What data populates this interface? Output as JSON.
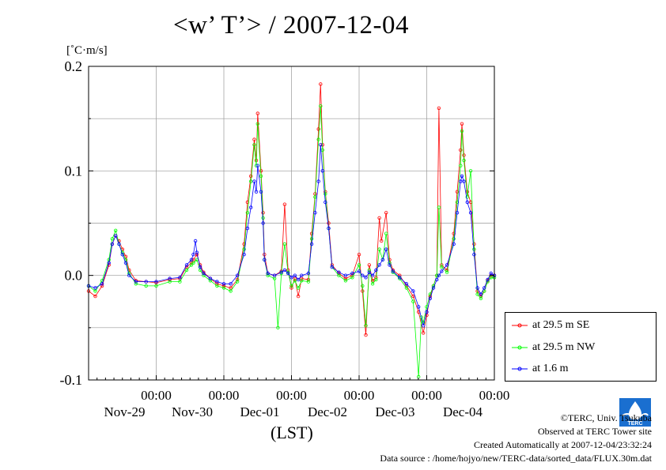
{
  "title": "<w’ T’> / 2007-12-04",
  "unit_label": "[˚C·m/s]",
  "xlabel": "(LST)",
  "footer": {
    "copyright": "©TERC, Univ. Tsukuba",
    "observed": "Observed at TERC Tower site",
    "created": "Created Automatically at 2007-12-04/23:32:24",
    "source": "Data source : /home/hojyo/new/TERC-data/sorted_data/FLUX.30m.dat"
  },
  "logo_text": "TERC",
  "colors": {
    "se": "#ff0000",
    "nw": "#00ff00",
    "low": "#0000ff",
    "grid": "#999999"
  },
  "chart_data": {
    "type": "line",
    "title": "<w’ T’> / 2007-12-04",
    "ylabel": "[˚C·m/s]",
    "xlabel": "(LST)",
    "ylim": [
      -0.1,
      0.2
    ],
    "xlim": [
      0,
      6
    ],
    "x_unit": "days since 2007-11-28 00:00",
    "yticks": [
      {
        "v": 0.2,
        "label": "0.2"
      },
      {
        "v": 0.1,
        "label": "0.1"
      },
      {
        "v": 0.0,
        "label": "0.0"
      },
      {
        "v": -0.1,
        "label": "-0.1"
      }
    ],
    "xticks": [
      {
        "v": 1,
        "time": "00:00",
        "date": "Nov-29"
      },
      {
        "v": 2,
        "time": "00:00",
        "date": "Nov-30"
      },
      {
        "v": 3,
        "time": "00:00",
        "date": "Dec-01"
      },
      {
        "v": 4,
        "time": "00:00",
        "date": "Dec-02"
      },
      {
        "v": 5,
        "time": "00:00",
        "date": "Dec-03"
      },
      {
        "v": 6,
        "time": "00:00",
        "date": "Dec-04"
      }
    ],
    "grid": true,
    "legend_position": "bottom-right outside",
    "series": [
      {
        "name": "at 29.5 m SE",
        "color": "#ff0000",
        "points": [
          [
            0.0,
            -0.015
          ],
          [
            0.1,
            -0.02
          ],
          [
            0.2,
            -0.01
          ],
          [
            0.3,
            0.01
          ],
          [
            0.35,
            0.03
          ],
          [
            0.4,
            0.038
          ],
          [
            0.45,
            0.033
          ],
          [
            0.5,
            0.025
          ],
          [
            0.55,
            0.018
          ],
          [
            0.6,
            0.005
          ],
          [
            0.7,
            -0.005
          ],
          [
            0.85,
            -0.006
          ],
          [
            1.0,
            -0.007
          ],
          [
            1.2,
            -0.004
          ],
          [
            1.35,
            -0.003
          ],
          [
            1.45,
            0.008
          ],
          [
            1.52,
            0.012
          ],
          [
            1.55,
            0.015
          ],
          [
            1.6,
            0.02
          ],
          [
            1.65,
            0.01
          ],
          [
            1.7,
            0.003
          ],
          [
            1.8,
            -0.003
          ],
          [
            1.9,
            -0.008
          ],
          [
            2.0,
            -0.01
          ],
          [
            2.1,
            -0.012
          ],
          [
            2.2,
            -0.004
          ],
          [
            2.3,
            0.03
          ],
          [
            2.35,
            0.07
          ],
          [
            2.4,
            0.095
          ],
          [
            2.45,
            0.13
          ],
          [
            2.48,
            0.11
          ],
          [
            2.5,
            0.155
          ],
          [
            2.55,
            0.1
          ],
          [
            2.58,
            0.06
          ],
          [
            2.6,
            0.02
          ],
          [
            2.65,
            0.002
          ],
          [
            2.75,
            0.0
          ],
          [
            2.85,
            0.004
          ],
          [
            2.9,
            0.068
          ],
          [
            2.95,
            0.005
          ],
          [
            3.0,
            -0.012
          ],
          [
            3.05,
            -0.003
          ],
          [
            3.1,
            -0.02
          ],
          [
            3.15,
            -0.003
          ],
          [
            3.25,
            -0.004
          ],
          [
            3.3,
            0.04
          ],
          [
            3.35,
            0.078
          ],
          [
            3.4,
            0.14
          ],
          [
            3.43,
            0.183
          ],
          [
            3.46,
            0.125
          ],
          [
            3.5,
            0.08
          ],
          [
            3.55,
            0.05
          ],
          [
            3.6,
            0.01
          ],
          [
            3.7,
            0.002
          ],
          [
            3.8,
            -0.003
          ],
          [
            3.9,
            0.0
          ],
          [
            4.0,
            0.02
          ],
          [
            4.05,
            -0.015
          ],
          [
            4.1,
            -0.057
          ],
          [
            4.15,
            0.01
          ],
          [
            4.2,
            -0.005
          ],
          [
            4.25,
            -0.002
          ],
          [
            4.3,
            0.055
          ],
          [
            4.33,
            0.033
          ],
          [
            4.4,
            0.06
          ],
          [
            4.45,
            0.015
          ],
          [
            4.5,
            0.005
          ],
          [
            4.6,
            0.0
          ],
          [
            4.7,
            -0.01
          ],
          [
            4.8,
            -0.02
          ],
          [
            4.88,
            -0.035
          ],
          [
            4.95,
            -0.055
          ],
          [
            5.0,
            -0.038
          ],
          [
            5.05,
            -0.02
          ],
          [
            5.1,
            -0.01
          ],
          [
            5.15,
            0.0
          ],
          [
            5.18,
            0.16
          ],
          [
            5.22,
            0.01
          ],
          [
            5.3,
            0.005
          ],
          [
            5.4,
            0.04
          ],
          [
            5.45,
            0.08
          ],
          [
            5.5,
            0.12
          ],
          [
            5.52,
            0.145
          ],
          [
            5.55,
            0.115
          ],
          [
            5.6,
            0.08
          ],
          [
            5.65,
            0.07
          ],
          [
            5.7,
            0.03
          ],
          [
            5.75,
            -0.015
          ],
          [
            5.8,
            -0.02
          ],
          [
            5.85,
            -0.015
          ],
          [
            5.9,
            -0.005
          ],
          [
            5.95,
            0.0
          ],
          [
            6.0,
            0.0
          ]
        ]
      },
      {
        "name": "at 29.5 m NW",
        "color": "#00ff00",
        "points": [
          [
            0.0,
            -0.01
          ],
          [
            0.1,
            -0.015
          ],
          [
            0.2,
            -0.005
          ],
          [
            0.3,
            0.015
          ],
          [
            0.35,
            0.035
          ],
          [
            0.4,
            0.043
          ],
          [
            0.45,
            0.03
          ],
          [
            0.5,
            0.022
          ],
          [
            0.55,
            0.015
          ],
          [
            0.6,
            0.002
          ],
          [
            0.7,
            -0.008
          ],
          [
            0.85,
            -0.01
          ],
          [
            1.0,
            -0.01
          ],
          [
            1.2,
            -0.006
          ],
          [
            1.35,
            -0.006
          ],
          [
            1.45,
            0.005
          ],
          [
            1.52,
            0.01
          ],
          [
            1.55,
            0.012
          ],
          [
            1.6,
            0.015
          ],
          [
            1.65,
            0.005
          ],
          [
            1.7,
            0.0
          ],
          [
            1.8,
            -0.005
          ],
          [
            1.9,
            -0.01
          ],
          [
            2.0,
            -0.012
          ],
          [
            2.1,
            -0.015
          ],
          [
            2.2,
            -0.006
          ],
          [
            2.3,
            0.025
          ],
          [
            2.35,
            0.06
          ],
          [
            2.4,
            0.09
          ],
          [
            2.45,
            0.125
          ],
          [
            2.48,
            0.105
          ],
          [
            2.5,
            0.145
          ],
          [
            2.55,
            0.095
          ],
          [
            2.58,
            0.055
          ],
          [
            2.6,
            0.015
          ],
          [
            2.65,
            0.0
          ],
          [
            2.75,
            -0.003
          ],
          [
            2.8,
            -0.05
          ],
          [
            2.85,
            0.002
          ],
          [
            2.9,
            0.03
          ],
          [
            2.95,
            0.003
          ],
          [
            3.0,
            -0.01
          ],
          [
            3.05,
            -0.005
          ],
          [
            3.1,
            -0.012
          ],
          [
            3.15,
            -0.005
          ],
          [
            3.25,
            -0.006
          ],
          [
            3.3,
            0.035
          ],
          [
            3.35,
            0.075
          ],
          [
            3.4,
            0.13
          ],
          [
            3.43,
            0.162
          ],
          [
            3.46,
            0.12
          ],
          [
            3.5,
            0.078
          ],
          [
            3.55,
            0.045
          ],
          [
            3.6,
            0.008
          ],
          [
            3.7,
            0.0
          ],
          [
            3.8,
            -0.005
          ],
          [
            3.9,
            -0.002
          ],
          [
            4.0,
            0.01
          ],
          [
            4.05,
            -0.01
          ],
          [
            4.1,
            -0.048
          ],
          [
            4.15,
            0.005
          ],
          [
            4.2,
            -0.008
          ],
          [
            4.25,
            -0.004
          ],
          [
            4.3,
            0.025
          ],
          [
            4.35,
            0.015
          ],
          [
            4.4,
            0.04
          ],
          [
            4.45,
            0.012
          ],
          [
            4.5,
            0.003
          ],
          [
            4.6,
            -0.003
          ],
          [
            4.7,
            -0.012
          ],
          [
            4.8,
            -0.025
          ],
          [
            4.88,
            -0.097
          ],
          [
            4.92,
            -0.04
          ],
          [
            4.95,
            -0.045
          ],
          [
            5.0,
            -0.03
          ],
          [
            5.05,
            -0.018
          ],
          [
            5.1,
            -0.01
          ],
          [
            5.15,
            0.0
          ],
          [
            5.18,
            0.065
          ],
          [
            5.22,
            0.008
          ],
          [
            5.3,
            0.003
          ],
          [
            5.4,
            0.035
          ],
          [
            5.45,
            0.07
          ],
          [
            5.5,
            0.105
          ],
          [
            5.52,
            0.138
          ],
          [
            5.55,
            0.11
          ],
          [
            5.6,
            0.075
          ],
          [
            5.65,
            0.1
          ],
          [
            5.7,
            0.025
          ],
          [
            5.75,
            -0.018
          ],
          [
            5.8,
            -0.022
          ],
          [
            5.85,
            -0.015
          ],
          [
            5.9,
            -0.006
          ],
          [
            5.95,
            -0.002
          ],
          [
            6.0,
            -0.002
          ]
        ]
      },
      {
        "name": "at 1.6 m",
        "color": "#0000ff",
        "points": [
          [
            0.0,
            -0.01
          ],
          [
            0.1,
            -0.012
          ],
          [
            0.2,
            -0.008
          ],
          [
            0.3,
            0.012
          ],
          [
            0.35,
            0.03
          ],
          [
            0.4,
            0.038
          ],
          [
            0.45,
            0.03
          ],
          [
            0.5,
            0.02
          ],
          [
            0.55,
            0.012
          ],
          [
            0.6,
            0.0
          ],
          [
            0.7,
            -0.006
          ],
          [
            0.85,
            -0.006
          ],
          [
            1.0,
            -0.006
          ],
          [
            1.2,
            -0.003
          ],
          [
            1.35,
            -0.002
          ],
          [
            1.45,
            0.01
          ],
          [
            1.52,
            0.015
          ],
          [
            1.55,
            0.02
          ],
          [
            1.58,
            0.033
          ],
          [
            1.6,
            0.022
          ],
          [
            1.65,
            0.008
          ],
          [
            1.7,
            0.002
          ],
          [
            1.8,
            -0.003
          ],
          [
            1.9,
            -0.006
          ],
          [
            2.0,
            -0.008
          ],
          [
            2.1,
            -0.008
          ],
          [
            2.2,
            0.0
          ],
          [
            2.3,
            0.02
          ],
          [
            2.35,
            0.045
          ],
          [
            2.4,
            0.065
          ],
          [
            2.45,
            0.09
          ],
          [
            2.48,
            0.08
          ],
          [
            2.5,
            0.105
          ],
          [
            2.55,
            0.08
          ],
          [
            2.58,
            0.05
          ],
          [
            2.6,
            0.015
          ],
          [
            2.65,
            0.002
          ],
          [
            2.75,
            0.0
          ],
          [
            2.85,
            0.003
          ],
          [
            2.9,
            0.005
          ],
          [
            2.95,
            0.002
          ],
          [
            3.0,
            -0.002
          ],
          [
            3.05,
            0.0
          ],
          [
            3.1,
            -0.004
          ],
          [
            3.15,
            0.0
          ],
          [
            3.25,
            0.002
          ],
          [
            3.3,
            0.03
          ],
          [
            3.35,
            0.06
          ],
          [
            3.4,
            0.09
          ],
          [
            3.43,
            0.125
          ],
          [
            3.46,
            0.1
          ],
          [
            3.5,
            0.07
          ],
          [
            3.55,
            0.045
          ],
          [
            3.6,
            0.008
          ],
          [
            3.7,
            0.003
          ],
          [
            3.8,
            0.0
          ],
          [
            3.9,
            0.002
          ],
          [
            4.0,
            0.004
          ],
          [
            4.05,
            0.0
          ],
          [
            4.1,
            -0.002
          ],
          [
            4.15,
            0.003
          ],
          [
            4.2,
            0.0
          ],
          [
            4.25,
            0.005
          ],
          [
            4.3,
            0.01
          ],
          [
            4.35,
            0.015
          ],
          [
            4.4,
            0.025
          ],
          [
            4.45,
            0.01
          ],
          [
            4.5,
            0.004
          ],
          [
            4.6,
            -0.002
          ],
          [
            4.7,
            -0.008
          ],
          [
            4.8,
            -0.015
          ],
          [
            4.88,
            -0.03
          ],
          [
            4.95,
            -0.048
          ],
          [
            5.0,
            -0.035
          ],
          [
            5.05,
            -0.022
          ],
          [
            5.1,
            -0.012
          ],
          [
            5.15,
            -0.004
          ],
          [
            5.18,
            0.0
          ],
          [
            5.22,
            0.004
          ],
          [
            5.3,
            0.01
          ],
          [
            5.4,
            0.03
          ],
          [
            5.45,
            0.06
          ],
          [
            5.5,
            0.09
          ],
          [
            5.52,
            0.095
          ],
          [
            5.55,
            0.09
          ],
          [
            5.6,
            0.07
          ],
          [
            5.65,
            0.06
          ],
          [
            5.7,
            0.02
          ],
          [
            5.75,
            -0.012
          ],
          [
            5.8,
            -0.018
          ],
          [
            5.85,
            -0.012
          ],
          [
            5.9,
            -0.004
          ],
          [
            5.95,
            0.002
          ],
          [
            6.0,
            0.0
          ]
        ]
      }
    ]
  }
}
